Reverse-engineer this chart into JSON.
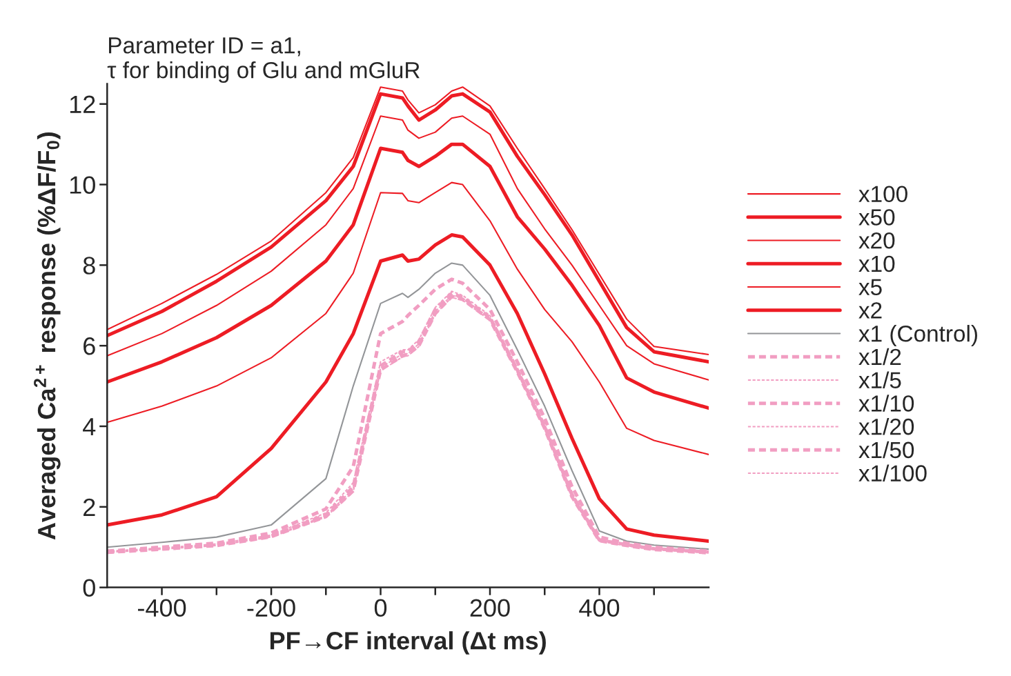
{
  "chart_data": {
    "type": "line",
    "title": "Parameter ID = a1,\nτ for binding of Glu and mGluR",
    "xlabel": "PF→CF interval (Δt ms)",
    "ylabel": "Averaged Ca$^{2+}$ response (%ΔF/F$_{0}$)",
    "x": [
      -500,
      -400,
      -300,
      -200,
      -100,
      -50,
      0,
      40,
      50,
      70,
      100,
      130,
      150,
      200,
      250,
      300,
      350,
      400,
      450,
      500,
      600
    ],
    "xlim": [
      -500,
      600
    ],
    "xticks": [
      -400,
      {
        "value": -300,
        "label": null
      },
      -200,
      {
        "value": -100,
        "label": null
      },
      0,
      {
        "value": 100,
        "label": null
      },
      200,
      {
        "value": 300,
        "label": null
      },
      400,
      {
        "value": 500,
        "label": null
      }
    ],
    "ylim": [
      0,
      12.5
    ],
    "yticks": [
      0,
      2,
      4,
      6,
      8,
      10,
      12
    ],
    "grid": false,
    "legend": "right",
    "marker": "none",
    "series": [
      {
        "name": "x100",
        "color": "#ed1c24",
        "line_style": "solid",
        "values": [
          6.4,
          7.05,
          7.77,
          8.6,
          9.8,
          10.67,
          12.42,
          12.32,
          12.1,
          11.78,
          11.98,
          12.32,
          12.42,
          11.95,
          10.9,
          9.9,
          8.88,
          7.77,
          6.66,
          5.98,
          5.78
        ]
      },
      {
        "name": "x50",
        "color": "#ed1c24",
        "line_style": "solid",
        "values": [
          6.25,
          6.85,
          7.6,
          8.45,
          9.6,
          10.45,
          12.25,
          12.15,
          11.95,
          11.6,
          11.85,
          12.2,
          12.25,
          11.8,
          10.7,
          9.75,
          8.75,
          7.6,
          6.45,
          5.85,
          5.6
        ]
      },
      {
        "name": "x20",
        "color": "#ed1c24",
        "line_style": "solid",
        "values": [
          5.75,
          6.3,
          7.0,
          7.85,
          9.0,
          9.9,
          11.7,
          11.6,
          11.35,
          11.15,
          11.3,
          11.65,
          11.7,
          11.25,
          9.9,
          8.9,
          8.0,
          7.0,
          6.0,
          5.55,
          5.15
        ]
      },
      {
        "name": "x10",
        "color": "#ed1c24",
        "line_style": "solid",
        "values": [
          5.1,
          5.6,
          6.2,
          7.0,
          8.1,
          9.0,
          10.9,
          10.8,
          10.6,
          10.45,
          10.7,
          11.0,
          11.0,
          10.45,
          9.2,
          8.4,
          7.5,
          6.5,
          5.2,
          4.85,
          4.45
        ]
      },
      {
        "name": "x5",
        "color": "#ed1c24",
        "line_style": "solid",
        "values": [
          4.1,
          4.5,
          5.0,
          5.7,
          6.8,
          7.8,
          9.8,
          9.78,
          9.6,
          9.55,
          9.8,
          10.05,
          10.0,
          9.1,
          7.9,
          6.9,
          6.1,
          5.1,
          3.95,
          3.65,
          3.3
        ]
      },
      {
        "name": "x2",
        "color": "#ed1c24",
        "line_style": "solid",
        "values": [
          1.55,
          1.8,
          2.25,
          3.45,
          5.1,
          6.3,
          8.1,
          8.25,
          8.1,
          8.15,
          8.5,
          8.75,
          8.7,
          8.0,
          6.8,
          5.3,
          3.7,
          2.2,
          1.45,
          1.3,
          1.15
        ]
      },
      {
        "name": "x1 (Control)",
        "color": "#939598",
        "line_style": "solid",
        "values": [
          1.0,
          1.12,
          1.25,
          1.55,
          2.7,
          5.0,
          7.05,
          7.3,
          7.2,
          7.4,
          7.8,
          8.05,
          8.0,
          7.25,
          5.9,
          4.5,
          2.9,
          1.4,
          1.15,
          1.05,
          0.95
        ]
      },
      {
        "name": "x1/2",
        "color": "#f19ec2",
        "line_style": "dashed",
        "values": [
          0.9,
          1.0,
          1.1,
          1.35,
          1.95,
          3.0,
          6.3,
          6.6,
          6.75,
          7.0,
          7.4,
          7.65,
          7.55,
          6.9,
          5.6,
          4.2,
          2.5,
          1.25,
          1.1,
          1.0,
          0.9
        ]
      },
      {
        "name": "x1/5",
        "color": "#f19ec2",
        "line_style": "dashed",
        "values": [
          0.9,
          0.98,
          1.08,
          1.3,
          1.85,
          2.6,
          5.6,
          5.9,
          5.9,
          6.15,
          6.95,
          7.35,
          7.25,
          6.75,
          5.45,
          4.05,
          2.35,
          1.2,
          1.08,
          0.98,
          0.9
        ]
      },
      {
        "name": "x1/10",
        "color": "#f19ec2",
        "line_style": "dashed",
        "values": [
          0.88,
          0.97,
          1.06,
          1.28,
          1.8,
          2.5,
          5.5,
          5.85,
          5.85,
          6.1,
          6.9,
          7.3,
          7.2,
          6.7,
          5.4,
          4.0,
          2.3,
          1.18,
          1.06,
          0.96,
          0.88
        ]
      },
      {
        "name": "x1/20",
        "color": "#f19ec2",
        "line_style": "dashed",
        "values": [
          0.88,
          0.96,
          1.05,
          1.27,
          1.78,
          2.45,
          5.45,
          5.8,
          5.8,
          6.05,
          6.85,
          7.25,
          7.18,
          6.68,
          5.38,
          3.98,
          2.28,
          1.17,
          1.05,
          0.95,
          0.87
        ]
      },
      {
        "name": "x1/50",
        "color": "#f19ec2",
        "line_style": "dashed",
        "values": [
          0.87,
          0.95,
          1.04,
          1.26,
          1.76,
          2.4,
          5.4,
          5.75,
          5.78,
          6.0,
          6.8,
          7.22,
          7.15,
          6.65,
          5.35,
          3.95,
          2.25,
          1.16,
          1.04,
          0.94,
          0.86
        ]
      },
      {
        "name": "x1/100",
        "color": "#f19ec2",
        "line_style": "dashed",
        "values": [
          0.87,
          0.95,
          1.04,
          1.25,
          1.75,
          2.38,
          5.38,
          5.72,
          5.75,
          5.98,
          6.78,
          7.2,
          7.13,
          6.63,
          5.33,
          3.93,
          2.23,
          1.15,
          1.03,
          0.94,
          0.86
        ]
      }
    ]
  }
}
